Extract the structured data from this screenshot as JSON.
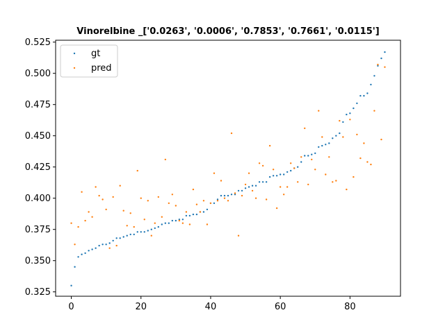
{
  "chart_data": {
    "type": "scatter",
    "title": "Vinorelbine _['0.0263', '0.0006', '0.7853', '0.7661', '0.0115']",
    "xlabel": "",
    "ylabel": "",
    "xlim": [
      -4.5,
      94.5
    ],
    "ylim": [
      0.3215,
      0.5265
    ],
    "xticks": [
      0,
      20,
      40,
      60,
      80
    ],
    "yticks": [
      0.325,
      0.35,
      0.375,
      0.4,
      0.425,
      0.45,
      0.475,
      0.5,
      0.525
    ],
    "ytick_labels": [
      "0.325",
      "0.350",
      "0.375",
      "0.400",
      "0.425",
      "0.450",
      "0.475",
      "0.500",
      "0.525"
    ],
    "xtick_labels": [
      "0",
      "20",
      "40",
      "60",
      "80"
    ],
    "grid": false,
    "legend_position": "top-left",
    "series": [
      {
        "name": "gt",
        "color": "#1f77b4",
        "x": [
          0,
          1,
          2,
          3,
          4,
          5,
          6,
          7,
          8,
          9,
          10,
          11,
          12,
          13,
          14,
          15,
          16,
          17,
          18,
          19,
          20,
          21,
          22,
          23,
          24,
          25,
          26,
          27,
          28,
          29,
          30,
          31,
          32,
          33,
          34,
          35,
          36,
          37,
          38,
          39,
          40,
          41,
          42,
          43,
          44,
          45,
          46,
          47,
          48,
          49,
          50,
          51,
          52,
          53,
          54,
          55,
          56,
          57,
          58,
          59,
          60,
          61,
          62,
          63,
          64,
          65,
          66,
          67,
          68,
          69,
          70,
          71,
          72,
          73,
          74,
          75,
          76,
          77,
          78,
          79,
          80,
          81,
          82,
          83,
          84,
          85,
          86,
          87,
          88,
          89,
          90
        ],
        "y": [
          0.33,
          0.345,
          0.353,
          0.355,
          0.356,
          0.358,
          0.359,
          0.36,
          0.362,
          0.363,
          0.363,
          0.364,
          0.366,
          0.368,
          0.368,
          0.369,
          0.37,
          0.371,
          0.371,
          0.373,
          0.373,
          0.373,
          0.374,
          0.375,
          0.376,
          0.377,
          0.379,
          0.38,
          0.38,
          0.382,
          0.382,
          0.383,
          0.383,
          0.386,
          0.386,
          0.387,
          0.387,
          0.389,
          0.389,
          0.391,
          0.396,
          0.396,
          0.399,
          0.402,
          0.402,
          0.402,
          0.403,
          0.403,
          0.406,
          0.406,
          0.408,
          0.409,
          0.41,
          0.41,
          0.413,
          0.413,
          0.413,
          0.417,
          0.418,
          0.418,
          0.419,
          0.419,
          0.421,
          0.422,
          0.424,
          0.425,
          0.429,
          0.434,
          0.434,
          0.435,
          0.436,
          0.441,
          0.442,
          0.443,
          0.444,
          0.448,
          0.45,
          0.452,
          0.461,
          0.467,
          0.468,
          0.472,
          0.476,
          0.482,
          0.482,
          0.484,
          0.491,
          0.498,
          0.506,
          0.512,
          0.517
        ]
      },
      {
        "name": "pred",
        "color": "#ff7f0e",
        "x": [
          0,
          1,
          2,
          3,
          4,
          5,
          6,
          7,
          8,
          9,
          10,
          11,
          12,
          13,
          14,
          15,
          16,
          17,
          18,
          19,
          20,
          21,
          22,
          23,
          24,
          25,
          26,
          27,
          28,
          29,
          30,
          31,
          32,
          33,
          34,
          35,
          36,
          37,
          38,
          39,
          40,
          41,
          42,
          43,
          44,
          45,
          46,
          47,
          48,
          49,
          50,
          51,
          52,
          53,
          54,
          55,
          56,
          57,
          58,
          59,
          60,
          61,
          62,
          63,
          64,
          65,
          66,
          67,
          68,
          69,
          70,
          71,
          72,
          73,
          74,
          75,
          76,
          77,
          78,
          79,
          80,
          81,
          82,
          83,
          84,
          85,
          86,
          87,
          88,
          89,
          90
        ],
        "y": [
          0.38,
          0.363,
          0.377,
          0.405,
          0.382,
          0.389,
          0.385,
          0.409,
          0.402,
          0.399,
          0.391,
          0.36,
          0.401,
          0.362,
          0.41,
          0.39,
          0.378,
          0.388,
          0.377,
          0.422,
          0.4,
          0.383,
          0.398,
          0.37,
          0.38,
          0.401,
          0.385,
          0.431,
          0.396,
          0.403,
          0.394,
          0.382,
          0.38,
          0.389,
          0.379,
          0.407,
          0.395,
          0.389,
          0.398,
          0.379,
          0.396,
          0.42,
          0.398,
          0.414,
          0.4,
          0.398,
          0.452,
          0.404,
          0.37,
          0.402,
          0.411,
          0.42,
          0.406,
          0.4,
          0.428,
          0.426,
          0.399,
          0.442,
          0.423,
          0.392,
          0.409,
          0.403,
          0.409,
          0.428,
          0.424,
          0.413,
          0.433,
          0.456,
          0.411,
          0.431,
          0.423,
          0.47,
          0.449,
          0.419,
          0.433,
          0.413,
          0.414,
          0.462,
          0.449,
          0.407,
          0.463,
          0.417,
          0.451,
          0.432,
          0.444,
          0.429,
          0.427,
          0.47,
          0.507,
          0.447,
          0.505
        ]
      }
    ]
  }
}
